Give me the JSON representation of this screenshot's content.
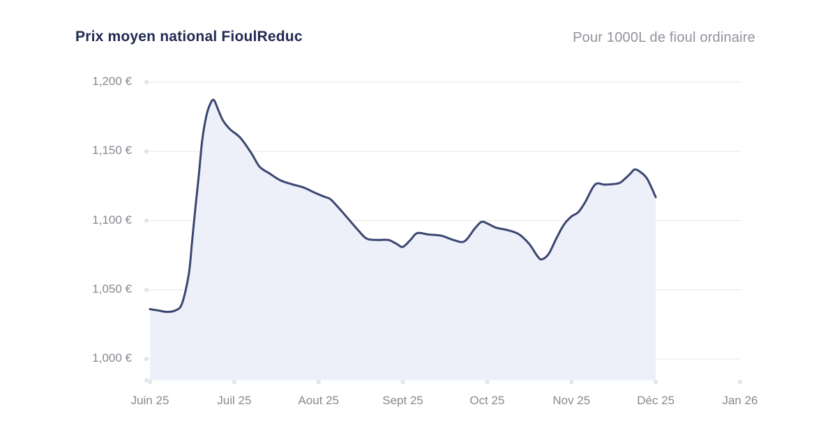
{
  "header": {
    "title": "Prix moyen national FioulReduc",
    "subtitle": "Pour 1000L de fioul ordinaire"
  },
  "chart_data": {
    "type": "area",
    "title": "Prix moyen national FioulReduc",
    "subtitle": "Pour 1000L de fioul ordinaire",
    "x_tick_labels": [
      "Juin 25",
      "Juil 25",
      "Aout 25",
      "Sept 25",
      "Oct 25",
      "Nov 25",
      "Déc 25",
      "Jan 26"
    ],
    "y_tick_labels": [
      "1,200 €",
      "1,150 €",
      "1,100 €",
      "1,050 €",
      "1,000 €"
    ],
    "y_ticks": [
      1200,
      1150,
      1100,
      1050,
      1000
    ],
    "ylim": [
      986,
      1200
    ],
    "xlim": [
      0,
      7.03
    ],
    "x_unit": "months after the Juin 25 tick (1 unit = 1 month; series ends at Déc 25)",
    "y_unit": "EUR per 1000 L of fioul ordinaire",
    "grid": "horizontal gridlines at each 50 € tick, light gray, with small round end dots on both axes",
    "legend": "none",
    "series": [
      {
        "name": "Prix moyen national FioulReduc",
        "points": [
          [
            0.0,
            1036
          ],
          [
            0.1,
            1035
          ],
          [
            0.2,
            1034
          ],
          [
            0.3,
            1035
          ],
          [
            0.38,
            1040
          ],
          [
            0.46,
            1061
          ],
          [
            0.5,
            1085
          ],
          [
            0.54,
            1110
          ],
          [
            0.58,
            1133
          ],
          [
            0.62,
            1158
          ],
          [
            0.67,
            1176
          ],
          [
            0.72,
            1185
          ],
          [
            0.76,
            1187
          ],
          [
            0.81,
            1180
          ],
          [
            0.87,
            1172
          ],
          [
            0.95,
            1166
          ],
          [
            1.07,
            1160
          ],
          [
            1.2,
            1149
          ],
          [
            1.3,
            1139
          ],
          [
            1.42,
            1134
          ],
          [
            1.55,
            1129
          ],
          [
            1.7,
            1126
          ],
          [
            1.82,
            1124
          ],
          [
            1.96,
            1120
          ],
          [
            2.08,
            1117
          ],
          [
            2.15,
            1115
          ],
          [
            2.3,
            1105
          ],
          [
            2.47,
            1093
          ],
          [
            2.57,
            1087
          ],
          [
            2.7,
            1086
          ],
          [
            2.83,
            1086
          ],
          [
            2.93,
            1083
          ],
          [
            3.0,
            1081
          ],
          [
            3.09,
            1086
          ],
          [
            3.17,
            1091
          ],
          [
            3.3,
            1090
          ],
          [
            3.46,
            1089
          ],
          [
            3.6,
            1086
          ],
          [
            3.73,
            1085
          ],
          [
            3.85,
            1094
          ],
          [
            3.93,
            1099
          ],
          [
            4.0,
            1098
          ],
          [
            4.1,
            1095
          ],
          [
            4.25,
            1093
          ],
          [
            4.38,
            1090
          ],
          [
            4.5,
            1083
          ],
          [
            4.6,
            1074
          ],
          [
            4.65,
            1072
          ],
          [
            4.73,
            1076
          ],
          [
            4.82,
            1087
          ],
          [
            4.91,
            1097
          ],
          [
            5.0,
            1103
          ],
          [
            5.08,
            1106
          ],
          [
            5.16,
            1113
          ],
          [
            5.28,
            1126
          ],
          [
            5.4,
            1126
          ],
          [
            5.56,
            1127
          ],
          [
            5.63,
            1130
          ],
          [
            5.7,
            1134
          ],
          [
            5.75,
            1137
          ],
          [
            5.82,
            1135
          ],
          [
            5.9,
            1130
          ],
          [
            6.0,
            1117
          ]
        ]
      }
    ],
    "colors": {
      "line": "#3b4671",
      "fill": "#edf0f9",
      "grid": "#e7e7ea",
      "tick_dot": "#e3e5ec",
      "axis_text": "#85898f",
      "title_text": "#202a52",
      "subtitle_text": "#8f939b",
      "background": "#ffffff"
    }
  }
}
